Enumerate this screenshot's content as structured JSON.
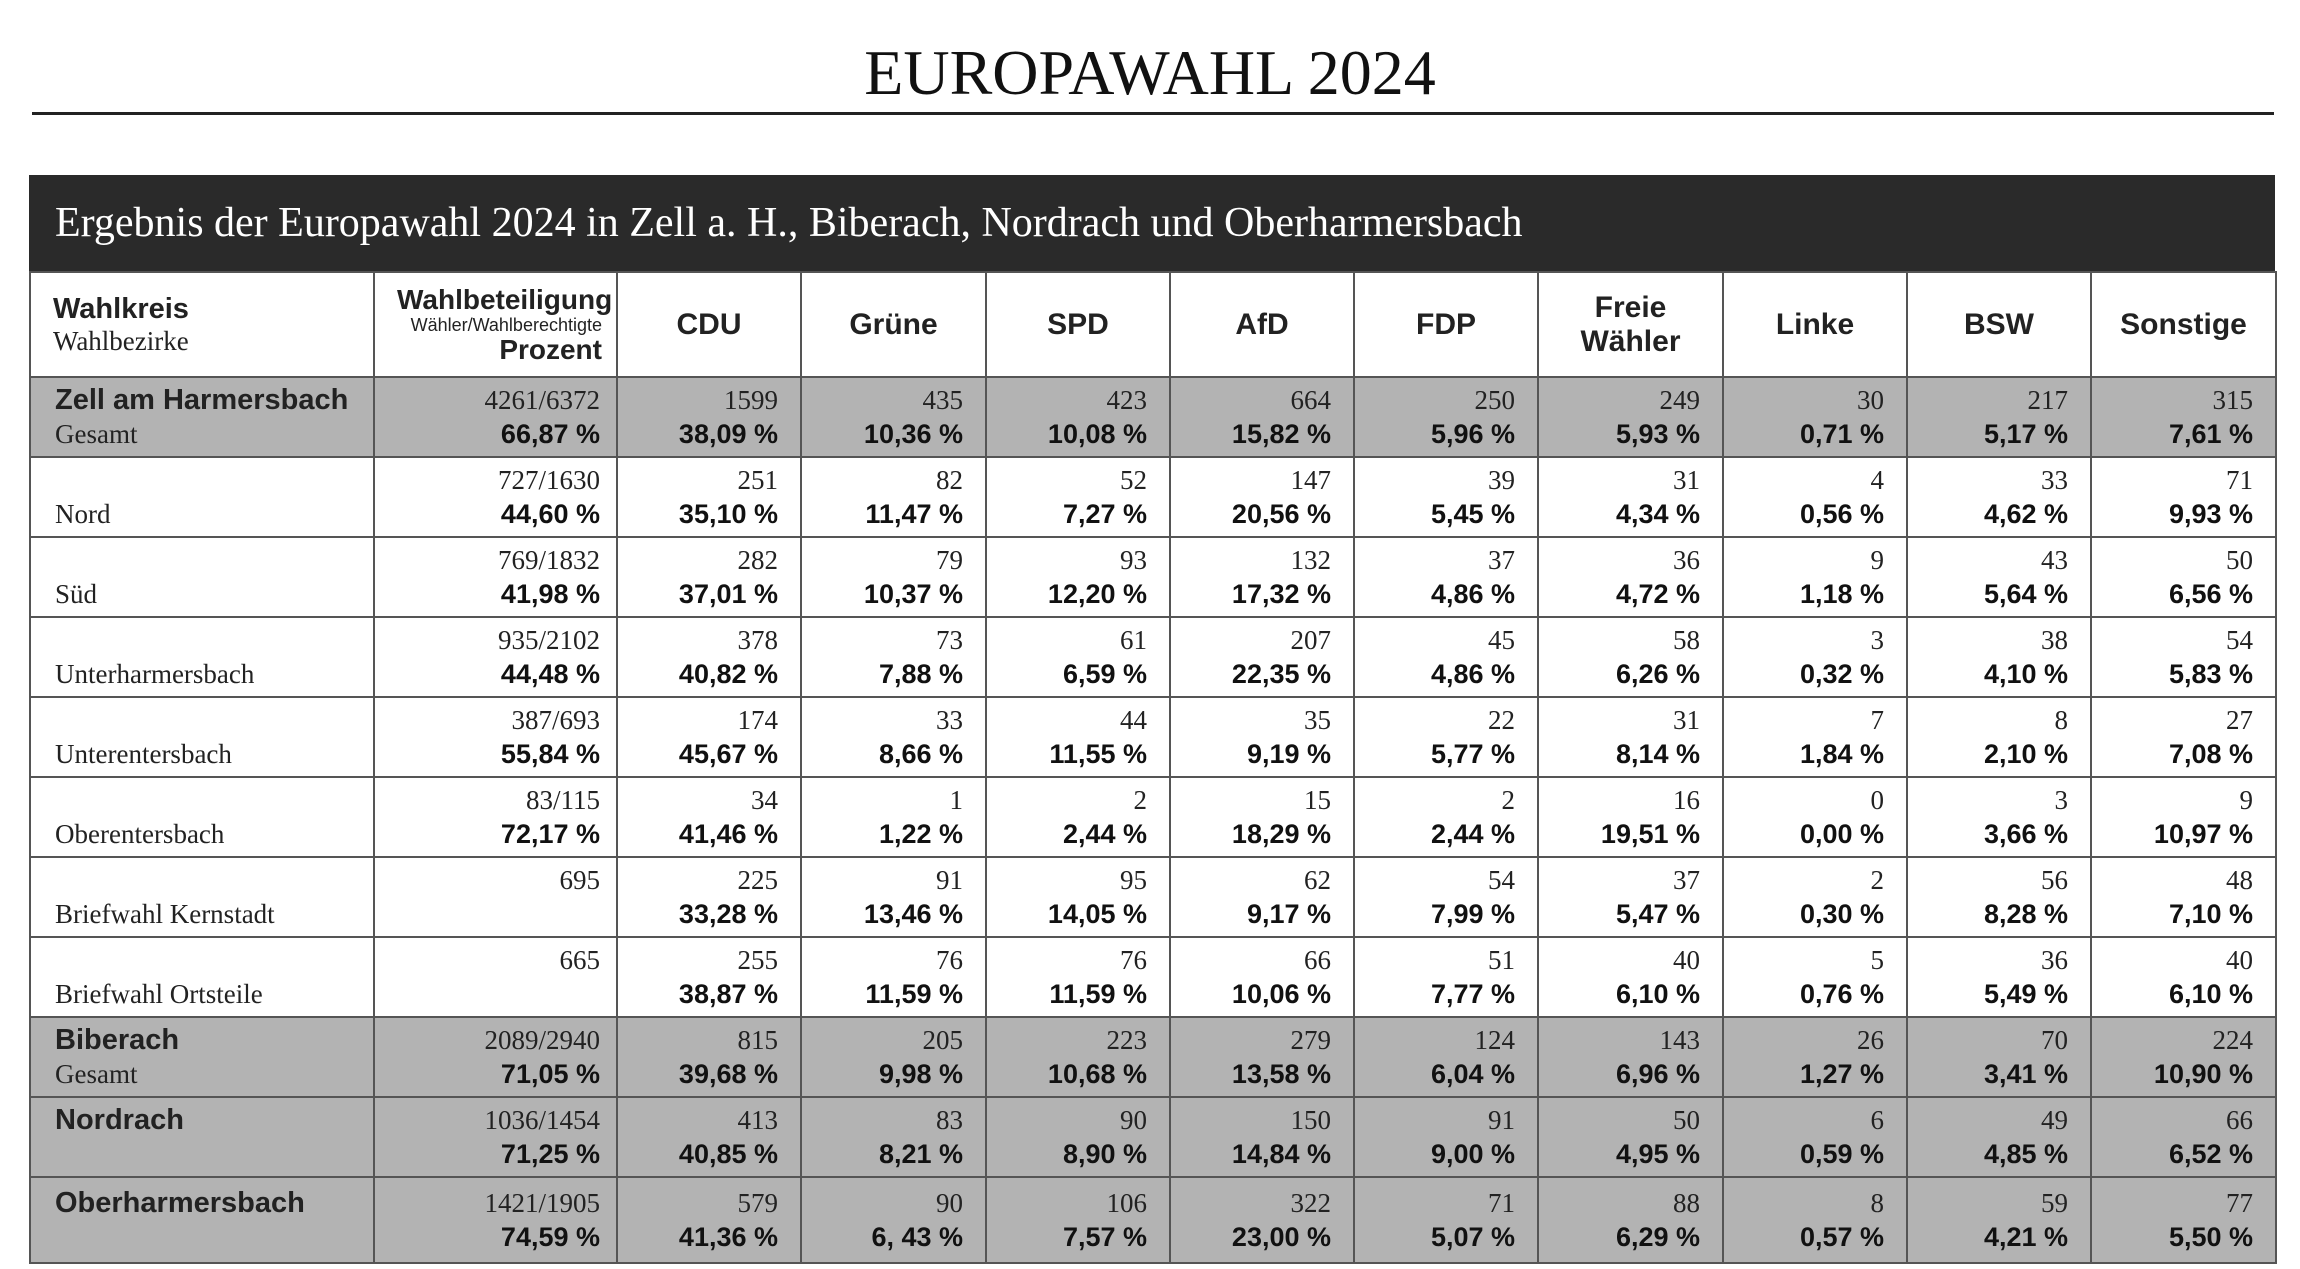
{
  "header": {
    "title": "EUROPAWAHL 2024"
  },
  "table": {
    "title": "Ergebnis der Europawahl 2024 in Zell a. H., Biberach, Nordrach und Oberharmersbach",
    "columns": {
      "district": {
        "label": "Wahlkreis",
        "sublabel": "Wahlbezirke"
      },
      "turnout": {
        "label": "Wahlbeteiligung",
        "sublabel": "Wähler/Wahlberechtigte",
        "unit": "Prozent"
      },
      "parties": [
        "CDU",
        "Grüne",
        "SPD",
        "AfD",
        "FDP",
        "Freie Wähler",
        "Linke",
        "BSW",
        "Sonstige"
      ]
    },
    "rows": [
      {
        "label": "Zell am Harmersbach",
        "sublabel": "Gesamt",
        "summary": true,
        "turnout": "4261/6372",
        "percent": "66,87 %",
        "cells": [
          [
            1599,
            "38,09 %"
          ],
          [
            435,
            "10,36 %"
          ],
          [
            423,
            "10,08 %"
          ],
          [
            664,
            "15,82 %"
          ],
          [
            250,
            "5,96 %"
          ],
          [
            249,
            "5,93 %"
          ],
          [
            30,
            "0,71 %"
          ],
          [
            217,
            "5,17 %"
          ],
          [
            315,
            "7,61 %"
          ]
        ]
      },
      {
        "label": "Nord",
        "summary": false,
        "turnout": "727/1630",
        "percent": "44,60 %",
        "cells": [
          [
            251,
            "35,10 %"
          ],
          [
            82,
            "11,47 %"
          ],
          [
            52,
            "7,27 %"
          ],
          [
            147,
            "20,56 %"
          ],
          [
            39,
            "5,45 %"
          ],
          [
            31,
            "4,34 %"
          ],
          [
            4,
            "0,56 %"
          ],
          [
            33,
            "4,62 %"
          ],
          [
            71,
            "9,93 %"
          ]
        ]
      },
      {
        "label": "Süd",
        "summary": false,
        "turnout": "769/1832",
        "percent": "41,98 %",
        "cells": [
          [
            282,
            "37,01 %"
          ],
          [
            79,
            "10,37 %"
          ],
          [
            93,
            "12,20 %"
          ],
          [
            132,
            "17,32 %"
          ],
          [
            37,
            "4,86 %"
          ],
          [
            36,
            "4,72 %"
          ],
          [
            9,
            "1,18 %"
          ],
          [
            43,
            "5,64 %"
          ],
          [
            50,
            "6,56 %"
          ]
        ]
      },
      {
        "label": "Unterharmersbach",
        "summary": false,
        "turnout": "935/2102",
        "percent": "44,48 %",
        "cells": [
          [
            378,
            "40,82 %"
          ],
          [
            73,
            "7,88 %"
          ],
          [
            61,
            "6,59 %"
          ],
          [
            207,
            "22,35 %"
          ],
          [
            45,
            "4,86 %"
          ],
          [
            58,
            "6,26 %"
          ],
          [
            3,
            "0,32 %"
          ],
          [
            38,
            "4,10 %"
          ],
          [
            54,
            "5,83 %"
          ]
        ]
      },
      {
        "label": "Unterentersbach",
        "summary": false,
        "turnout": "387/693",
        "percent": "55,84 %",
        "cells": [
          [
            174,
            "45,67 %"
          ],
          [
            33,
            "8,66 %"
          ],
          [
            44,
            "11,55 %"
          ],
          [
            35,
            "9,19 %"
          ],
          [
            22,
            "5,77 %"
          ],
          [
            31,
            "8,14 %"
          ],
          [
            7,
            "1,84 %"
          ],
          [
            8,
            "2,10 %"
          ],
          [
            27,
            "7,08 %"
          ]
        ]
      },
      {
        "label": "Oberentersbach",
        "summary": false,
        "turnout": "83/115",
        "percent": "72,17 %",
        "cells": [
          [
            34,
            "41,46 %"
          ],
          [
            1,
            "1,22 %"
          ],
          [
            2,
            "2,44 %"
          ],
          [
            15,
            "18,29 %"
          ],
          [
            2,
            "2,44 %"
          ],
          [
            16,
            "19,51 %"
          ],
          [
            0,
            "0,00 %"
          ],
          [
            3,
            "3,66 %"
          ],
          [
            9,
            "10,97 %"
          ]
        ]
      },
      {
        "label": "Briefwahl Kernstadt",
        "summary": false,
        "turnout": "695",
        "cells": [
          [
            225,
            "33,28 %"
          ],
          [
            91,
            "13,46 %"
          ],
          [
            95,
            "14,05 %"
          ],
          [
            62,
            "9,17 %"
          ],
          [
            54,
            "7,99 %"
          ],
          [
            37,
            "5,47 %"
          ],
          [
            2,
            "0,30 %"
          ],
          [
            56,
            "8,28 %"
          ],
          [
            48,
            "7,10 %"
          ]
        ]
      },
      {
        "label": "Briefwahl Ortsteile",
        "summary": false,
        "turnout": "665",
        "cells": [
          [
            255,
            "38,87 %"
          ],
          [
            76,
            "11,59 %"
          ],
          [
            76,
            "11,59 %"
          ],
          [
            66,
            "10,06 %"
          ],
          [
            51,
            "7,77 %"
          ],
          [
            40,
            "6,10 %"
          ],
          [
            5,
            "0,76 %"
          ],
          [
            36,
            "5,49 %"
          ],
          [
            40,
            "6,10 %"
          ]
        ]
      },
      {
        "label": "Biberach",
        "sublabel": "Gesamt",
        "summary": true,
        "turnout": "2089/2940",
        "percent": "71,05 %",
        "cells": [
          [
            815,
            "39,68 %"
          ],
          [
            205,
            "9,98 %"
          ],
          [
            223,
            "10,68 %"
          ],
          [
            279,
            "13,58 %"
          ],
          [
            124,
            "6,04 %"
          ],
          [
            143,
            "6,96 %"
          ],
          [
            26,
            "1,27 %"
          ],
          [
            70,
            "3,41 %"
          ],
          [
            224,
            "10,90 %"
          ]
        ]
      },
      {
        "label": "Nordrach",
        "summary": true,
        "turnout": "1036/1454",
        "percent": "71,25 %",
        "cells": [
          [
            413,
            "40,85 %"
          ],
          [
            83,
            "8,21 %"
          ],
          [
            90,
            "8,90 %"
          ],
          [
            150,
            "14,84 %"
          ],
          [
            91,
            "9,00 %"
          ],
          [
            50,
            "4,95 %"
          ],
          [
            6,
            "0,59 %"
          ],
          [
            49,
            "4,85 %"
          ],
          [
            66,
            "6,52 %"
          ]
        ]
      },
      {
        "label": "Oberharmersbach",
        "summary": true,
        "turnout": "1421/1905",
        "percent": "74,59 %",
        "cells": [
          [
            579,
            "41,36 %"
          ],
          [
            90,
            "6, 43 %"
          ],
          [
            106,
            "7,57 %"
          ],
          [
            322,
            "23,00 %"
          ],
          [
            71,
            "5,07 %"
          ],
          [
            88,
            "6,29 %"
          ],
          [
            8,
            "0,57 %"
          ],
          [
            59,
            "4,21 %"
          ],
          [
            77,
            "5,50 %"
          ]
        ]
      }
    ]
  }
}
